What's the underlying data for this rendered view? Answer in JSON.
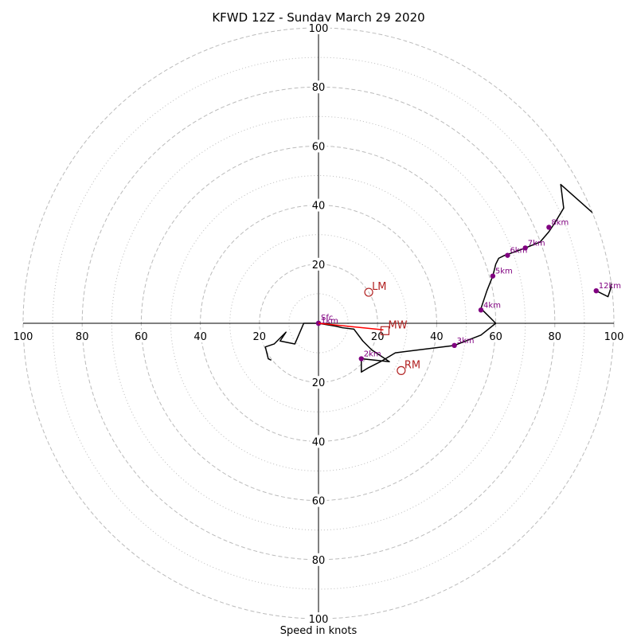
{
  "chart_data": {
    "type": "hodograph",
    "title": "KFWD 12Z - Sunday March 29 2020",
    "xlabel": "Speed in knots",
    "range": 100,
    "ring_major": [
      20,
      40,
      60,
      80,
      100
    ],
    "ring_minor": [
      10,
      30,
      50,
      70,
      90
    ],
    "tick_values": [
      20,
      40,
      60,
      80,
      100
    ],
    "tick_labels": [
      "20",
      "40",
      "60",
      "80",
      "100"
    ],
    "grid": true,
    "colors": {
      "profile": "#000000",
      "height_marker": "#800080",
      "storm_motion": "#b22222",
      "mean_wind_vector": "#ff0000",
      "grid": "#bbbbbb"
    },
    "profile": [
      [
        0,
        0
      ],
      [
        6,
        -1
      ],
      [
        8,
        -1.5
      ],
      [
        12,
        -2
      ],
      [
        15,
        -6
      ],
      [
        18,
        -9
      ],
      [
        21,
        -11
      ],
      [
        24,
        -13
      ],
      [
        14.5,
        -12
      ],
      [
        14.5,
        -16.5
      ],
      [
        17,
        -15
      ],
      [
        21,
        -13
      ],
      [
        26,
        -10
      ],
      [
        34,
        -9
      ],
      [
        46,
        -7.5
      ],
      [
        55,
        -4
      ],
      [
        60,
        0
      ],
      [
        58,
        2
      ],
      [
        56,
        4
      ],
      [
        55,
        5
      ],
      [
        57,
        11
      ],
      [
        59,
        16
      ],
      [
        60,
        20
      ],
      [
        61,
        22
      ],
      [
        63,
        23
      ],
      [
        66,
        24
      ],
      [
        70,
        25.5
      ],
      [
        75,
        27.5
      ],
      [
        78,
        31
      ],
      [
        80,
        34
      ],
      [
        83,
        39
      ],
      [
        82,
        47
      ],
      [
        100,
        31
      ]
    ],
    "profile_lower": [
      [
        0,
        0
      ],
      [
        -5,
        0
      ],
      [
        -8,
        -7
      ],
      [
        -13,
        -6
      ],
      [
        -11,
        -3
      ],
      [
        -15,
        -7
      ],
      [
        -18,
        -8
      ],
      [
        -17,
        -12
      ],
      [
        -16,
        -12.5
      ]
    ],
    "profile_upper": [
      [
        100,
        24
      ],
      [
        100,
        21
      ]
    ],
    "profile_tail": [
      [
        100,
        24
      ],
      [
        99,
        12
      ],
      [
        98,
        9
      ],
      [
        94,
        11
      ]
    ],
    "heights": [
      {
        "label": "Sfc",
        "x": 0,
        "y": 0
      },
      {
        "label": "1km",
        "x": 0,
        "y": 0
      },
      {
        "label": "2km",
        "x": 14.5,
        "y": -12
      },
      {
        "label": "3km",
        "x": 46,
        "y": -7.5
      },
      {
        "label": "4km",
        "x": 55,
        "y": 4.5
      },
      {
        "label": "5km",
        "x": 59,
        "y": 16
      },
      {
        "label": "6km",
        "x": 64,
        "y": 23
      },
      {
        "label": "7km",
        "x": 70,
        "y": 25.5
      },
      {
        "label": "8km",
        "x": 78,
        "y": 32.5
      },
      {
        "label": "12km",
        "x": 94,
        "y": 11
      }
    ],
    "storm_motion": [
      {
        "label": "LM",
        "x": 17,
        "y": 10.5
      },
      {
        "label": "RM",
        "x": 28,
        "y": -16
      }
    ],
    "mean_wind": {
      "label": "MW",
      "x": 22.5,
      "y": -2.5
    }
  }
}
